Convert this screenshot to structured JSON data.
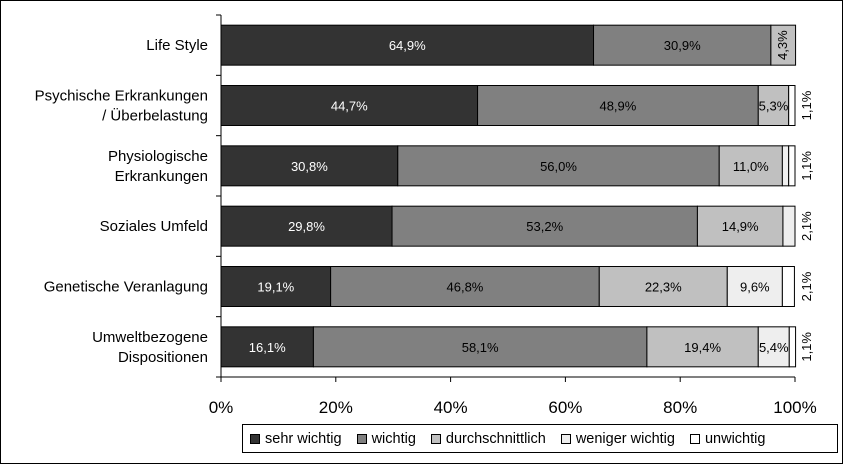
{
  "chart_data": {
    "type": "bar",
    "orientation": "horizontal",
    "stacked": "percent",
    "categories": [
      [
        "Life Style"
      ],
      [
        "Psychische Erkrankungen",
        "/ Überbelastung"
      ],
      [
        "Physiologische",
        "Erkrankungen"
      ],
      [
        "Soziales Umfeld"
      ],
      [
        "Genetische Veranlagung"
      ],
      [
        "Umweltbezogene",
        "Dispositionen"
      ]
    ],
    "series": [
      {
        "name": "sehr wichtig",
        "color": "#333333",
        "text_color": "#ffffff",
        "values": [
          64.9,
          44.7,
          30.8,
          29.8,
          19.1,
          16.1
        ],
        "labels": [
          "64,9%",
          "44,7%",
          "30,8%",
          "29,8%",
          "19,1%",
          "16,1%"
        ]
      },
      {
        "name": "wichtig",
        "color": "#808080",
        "text_color": "#000000",
        "values": [
          30.9,
          48.9,
          56.0,
          53.2,
          46.8,
          58.1
        ],
        "labels": [
          "30,9%",
          "48,9%",
          "56,0%",
          "53,2%",
          "46,8%",
          "58,1%"
        ]
      },
      {
        "name": "durchschnittlich",
        "color": "#c0c0c0",
        "text_color": "#000000",
        "values": [
          4.3,
          5.3,
          11.0,
          14.9,
          22.3,
          19.4
        ],
        "labels": [
          "4,3%",
          "5,3%",
          "11,0%",
          "14,9%",
          "22,3%",
          "19,4%"
        ]
      },
      {
        "name": "weniger wichtig",
        "color": "#eeeeee",
        "text_color": "#000000",
        "values": [
          0,
          0,
          1.1,
          2.1,
          9.6,
          5.4
        ],
        "labels": [
          "",
          "",
          "",
          "",
          "9,6%",
          "5,4%"
        ]
      },
      {
        "name": "unwichtig",
        "color": "#ffffff",
        "text_color": "#000000",
        "values": [
          0,
          1.1,
          1.1,
          0,
          2.1,
          1.1
        ],
        "labels": [
          "",
          "",
          "",
          "",
          "",
          ""
        ]
      }
    ],
    "outside_labels": [
      "",
      "1,1%",
      "1,1%",
      "2,1%",
      "2,1%",
      "1,1%"
    ],
    "xlim": [
      0,
      100
    ],
    "x_ticks": [
      "0%",
      "20%",
      "40%",
      "60%",
      "80%",
      "100%"
    ],
    "grid": false,
    "legend_position": "bottom-right"
  }
}
